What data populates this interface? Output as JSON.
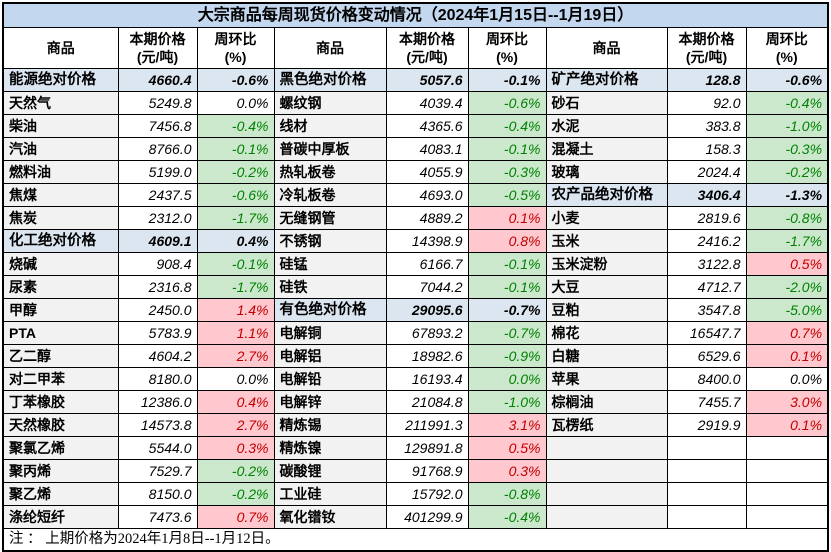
{
  "title": "大宗商品每周现货价格变动情况（2024年1月15日--1月19日）",
  "header": {
    "commodity": "商品",
    "price_line1": "本期价格",
    "price_line2": "(元/吨)",
    "pct_line1": "周环比",
    "pct_line2": "(%)"
  },
  "note": "注 ： 上期价格为2024年1月8日--1月12日。",
  "colors": {
    "title_bg": "#C3D7EE",
    "section_row_bg": "#DCE6F1",
    "increase_bg": "#FFC7CE",
    "increase_text": "#C00000",
    "decrease_bg": "#CBE8CD",
    "decrease_text": "#008000",
    "name_cell_bg": "#F2F2F2"
  },
  "chart_data": {
    "type": "table",
    "title": "大宗商品每周现货价格变动情况（2024年1月15日--1月19日）",
    "columns": [
      "商品",
      "本期价格(元/吨)",
      "周环比(%)"
    ],
    "note": "上期价格为2024年1月8日--1月12日。",
    "groups": [
      {
        "rows": [
          {
            "name": "能源绝对价格",
            "price": "4660.4",
            "pct": "-0.6%",
            "style": "section"
          },
          {
            "name": "天然气",
            "price": "5249.8",
            "pct": "0.0%",
            "style": "flat"
          },
          {
            "name": "柴油",
            "price": "7456.8",
            "pct": "-0.4%",
            "style": "down"
          },
          {
            "name": "汽油",
            "price": "8766.0",
            "pct": "-0.1%",
            "style": "down"
          },
          {
            "name": "燃料油",
            "price": "5199.0",
            "pct": "-0.2%",
            "style": "down"
          },
          {
            "name": "焦煤",
            "price": "2437.5",
            "pct": "-0.6%",
            "style": "down"
          },
          {
            "name": "焦炭",
            "price": "2312.0",
            "pct": "-1.7%",
            "style": "down"
          },
          {
            "name": "化工绝对价格",
            "price": "4609.1",
            "pct": "0.4%",
            "style": "section"
          },
          {
            "name": "烧碱",
            "price": "908.4",
            "pct": "-0.1%",
            "style": "down"
          },
          {
            "name": "尿素",
            "price": "2316.8",
            "pct": "-1.7%",
            "style": "down"
          },
          {
            "name": "甲醇",
            "price": "2450.0",
            "pct": "1.4%",
            "style": "up"
          },
          {
            "name": "PTA",
            "price": "5783.9",
            "pct": "1.1%",
            "style": "up"
          },
          {
            "name": "乙二醇",
            "price": "4604.2",
            "pct": "2.7%",
            "style": "up"
          },
          {
            "name": "对二甲苯",
            "price": "8180.0",
            "pct": "0.0%",
            "style": "flat"
          },
          {
            "name": "丁苯橡胶",
            "price": "12386.0",
            "pct": "0.4%",
            "style": "up"
          },
          {
            "name": "天然橡胶",
            "price": "14573.8",
            "pct": "2.7%",
            "style": "up"
          },
          {
            "name": "聚氯乙烯",
            "price": "5544.0",
            "pct": "0.3%",
            "style": "up"
          },
          {
            "name": "聚丙烯",
            "price": "7529.7",
            "pct": "-0.2%",
            "style": "down"
          },
          {
            "name": "聚乙烯",
            "price": "8150.0",
            "pct": "-0.2%",
            "style": "down"
          },
          {
            "name": "涤纶短纤",
            "price": "7473.6",
            "pct": "0.7%",
            "style": "up"
          }
        ]
      },
      {
        "rows": [
          {
            "name": "黑色绝对价格",
            "price": "5057.6",
            "pct": "-0.1%",
            "style": "section"
          },
          {
            "name": "螺纹钢",
            "price": "4039.4",
            "pct": "-0.6%",
            "style": "down"
          },
          {
            "name": "线材",
            "price": "4365.6",
            "pct": "-0.4%",
            "style": "down"
          },
          {
            "name": "普碳中厚板",
            "price": "4083.1",
            "pct": "-0.1%",
            "style": "down"
          },
          {
            "name": "热轧板卷",
            "price": "4055.9",
            "pct": "-0.3%",
            "style": "down"
          },
          {
            "name": "冷轧板卷",
            "price": "4693.0",
            "pct": "-0.5%",
            "style": "down"
          },
          {
            "name": "无缝钢管",
            "price": "4889.2",
            "pct": "0.1%",
            "style": "up"
          },
          {
            "name": "不锈钢",
            "price": "14398.9",
            "pct": "0.8%",
            "style": "up"
          },
          {
            "name": "硅锰",
            "price": "6166.7",
            "pct": "-0.1%",
            "style": "down"
          },
          {
            "name": "硅铁",
            "price": "7044.2",
            "pct": "-0.1%",
            "style": "down"
          },
          {
            "name": "有色绝对价格",
            "price": "29095.6",
            "pct": "-0.7%",
            "style": "section"
          },
          {
            "name": "电解铜",
            "price": "67893.2",
            "pct": "-0.7%",
            "style": "down"
          },
          {
            "name": "电解铝",
            "price": "18982.6",
            "pct": "-0.9%",
            "style": "down"
          },
          {
            "name": "电解铅",
            "price": "16193.4",
            "pct": "0.0%",
            "style": "down"
          },
          {
            "name": "电解锌",
            "price": "21084.8",
            "pct": "-1.0%",
            "style": "down"
          },
          {
            "name": "精炼锡",
            "price": "211991.3",
            "pct": "3.1%",
            "style": "up"
          },
          {
            "name": "精炼镍",
            "price": "129891.8",
            "pct": "0.5%",
            "style": "up"
          },
          {
            "name": "碳酸锂",
            "price": "91768.9",
            "pct": "0.3%",
            "style": "up"
          },
          {
            "name": "工业硅",
            "price": "15792.0",
            "pct": "-0.8%",
            "style": "down"
          },
          {
            "name": "氧化镨钕",
            "price": "401299.9",
            "pct": "-0.4%",
            "style": "down"
          }
        ]
      },
      {
        "rows": [
          {
            "name": "矿产绝对价格",
            "price": "128.8",
            "pct": "-0.6%",
            "style": "section"
          },
          {
            "name": "砂石",
            "price": "92.0",
            "pct": "-0.4%",
            "style": "down"
          },
          {
            "name": "水泥",
            "price": "383.8",
            "pct": "-1.0%",
            "style": "down"
          },
          {
            "name": "混凝土",
            "price": "158.3",
            "pct": "-0.3%",
            "style": "down"
          },
          {
            "name": "玻璃",
            "price": "2024.4",
            "pct": "-0.2%",
            "style": "down"
          },
          {
            "name": "农产品绝对价格",
            "price": "3406.4",
            "pct": "-1.3%",
            "style": "section"
          },
          {
            "name": "小麦",
            "price": "2819.6",
            "pct": "-0.8%",
            "style": "down"
          },
          {
            "name": "玉米",
            "price": "2416.2",
            "pct": "-1.7%",
            "style": "down"
          },
          {
            "name": "玉米淀粉",
            "price": "3122.8",
            "pct": "0.5%",
            "style": "up"
          },
          {
            "name": "大豆",
            "price": "4712.7",
            "pct": "-2.0%",
            "style": "down"
          },
          {
            "name": "豆粕",
            "price": "3547.8",
            "pct": "-5.0%",
            "style": "down"
          },
          {
            "name": "棉花",
            "price": "16547.7",
            "pct": "0.7%",
            "style": "up"
          },
          {
            "name": "白糖",
            "price": "6529.6",
            "pct": "0.1%",
            "style": "up"
          },
          {
            "name": "苹果",
            "price": "8400.0",
            "pct": "0.0%",
            "style": "flat"
          },
          {
            "name": "棕榈油",
            "price": "7455.7",
            "pct": "3.0%",
            "style": "up"
          },
          {
            "name": "瓦楞纸",
            "price": "2919.9",
            "pct": "0.1%",
            "style": "up"
          },
          {
            "name": "",
            "price": "",
            "pct": "",
            "style": "empty"
          },
          {
            "name": "",
            "price": "",
            "pct": "",
            "style": "empty"
          },
          {
            "name": "",
            "price": "",
            "pct": "",
            "style": "empty"
          },
          {
            "name": "",
            "price": "",
            "pct": "",
            "style": "empty"
          }
        ]
      }
    ]
  }
}
